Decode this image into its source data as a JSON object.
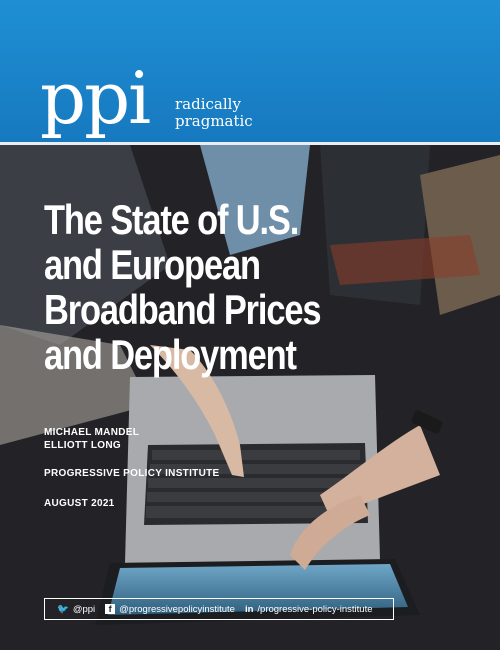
{
  "brand": {
    "logo": "ppi",
    "tagline_line1": "radically",
    "tagline_line2": "pragmatic"
  },
  "title_lines": [
    "The State of U.S.",
    "and European",
    "Broadband Prices",
    "and Deployment"
  ],
  "authors": [
    "MICHAEL MANDEL",
    "ELLIOTT LONG"
  ],
  "organization": "PROGRESSIVE POLICY INSTITUTE",
  "date": "AUGUST 2021",
  "social": {
    "twitter": "@ppi",
    "facebook": "@progressivepolicyinstitute",
    "linkedin": "/progressive-policy-institute"
  }
}
